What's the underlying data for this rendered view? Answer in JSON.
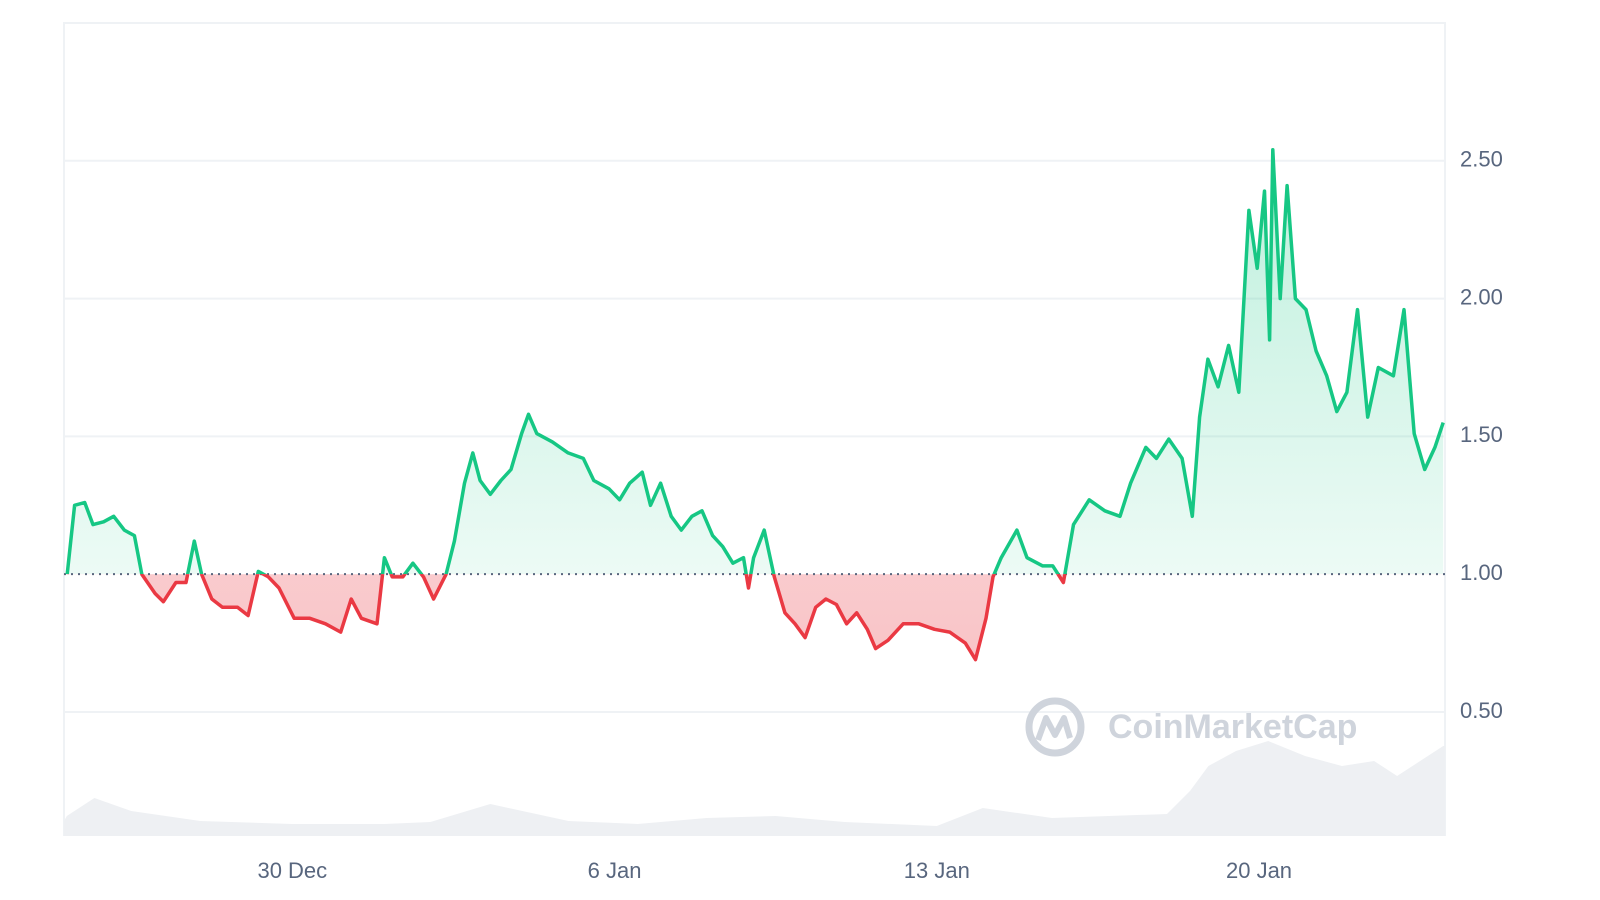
{
  "chart_data": {
    "type": "line",
    "watermark": "CoinMarketCap",
    "x": [
      -4.89,
      -4.73,
      -4.51,
      -4.33,
      -4.1,
      -3.88,
      -3.65,
      -3.43,
      -3.27,
      -2.98,
      -2.8,
      -2.53,
      -2.31,
      -2.13,
      -1.97,
      -1.75,
      -1.52,
      -1.19,
      -0.96,
      -0.74,
      -0.52,
      -0.29,
      0.04,
      0.38,
      0.72,
      1.05,
      1.28,
      1.5,
      1.84,
      2.0,
      2.17,
      2.4,
      2.62,
      2.85,
      3.07,
      3.34,
      3.52,
      3.74,
      3.92,
      4.08,
      4.3,
      4.53,
      4.75,
      4.98,
      5.13,
      5.31,
      5.65,
      5.99,
      6.32,
      6.55,
      6.88,
      7.11,
      7.33,
      7.6,
      7.78,
      8.0,
      8.23,
      8.45,
      8.68,
      8.9,
      9.13,
      9.35,
      9.57,
      9.8,
      9.91,
      10.02,
      10.25,
      10.47,
      10.7,
      10.92,
      11.14,
      11.37,
      11.59,
      11.82,
      12.04,
      12.26,
      12.49,
      12.67,
      12.94,
      13.27,
      13.61,
      13.95,
      14.28,
      14.62,
      14.84,
      15.07,
      15.22,
      15.4,
      15.74,
      15.96,
      16.3,
      16.52,
      16.75,
      16.97,
      17.31,
      17.65,
      17.98,
      18.21,
      18.54,
      18.77,
      19.04,
      19.33,
      19.55,
      19.71,
      19.89,
      20.11,
      20.34,
      20.56,
      20.78,
      20.96,
      21.12,
      21.23,
      21.3,
      21.46,
      21.61,
      21.79,
      22.02,
      22.24,
      22.47,
      22.69,
      22.91,
      23.14,
      23.36,
      23.59,
      23.92,
      24.15,
      24.37,
      24.6,
      24.82,
      25.0
    ],
    "series": [
      {
        "color": "#16c784",
        "below_color": "#ea3943",
        "values": [
          1.0,
          1.25,
          1.26,
          1.18,
          1.19,
          1.21,
          1.16,
          1.14,
          1.0,
          0.93,
          0.9,
          0.97,
          0.97,
          1.12,
          1.0,
          0.91,
          0.88,
          0.88,
          0.85,
          1.01,
          0.99,
          0.95,
          0.84,
          0.84,
          0.82,
          0.79,
          0.91,
          0.84,
          0.82,
          1.06,
          0.99,
          0.99,
          1.04,
          0.99,
          0.91,
          1.0,
          1.12,
          1.33,
          1.44,
          1.34,
          1.29,
          1.34,
          1.38,
          1.51,
          1.58,
          1.51,
          1.48,
          1.44,
          1.42,
          1.34,
          1.31,
          1.27,
          1.33,
          1.37,
          1.25,
          1.33,
          1.21,
          1.16,
          1.21,
          1.23,
          1.14,
          1.1,
          1.04,
          1.06,
          0.95,
          1.06,
          1.16,
          0.99,
          0.86,
          0.82,
          0.77,
          0.88,
          0.91,
          0.89,
          0.82,
          0.86,
          0.8,
          0.73,
          0.76,
          0.82,
          0.82,
          0.8,
          0.79,
          0.75,
          0.69,
          0.84,
          0.99,
          1.06,
          1.16,
          1.06,
          1.03,
          1.03,
          0.97,
          1.18,
          1.27,
          1.23,
          1.21,
          1.33,
          1.46,
          1.42,
          1.49,
          1.42,
          1.21,
          1.57,
          1.78,
          1.68,
          1.83,
          1.66,
          2.32,
          2.11,
          2.39,
          1.85,
          2.54,
          2.0,
          2.41,
          2.0,
          1.96,
          1.81,
          1.72,
          1.59,
          1.66,
          1.96,
          1.57,
          1.75,
          1.72,
          1.96,
          1.51,
          1.38,
          1.46,
          1.55
        ]
      }
    ],
    "baseline": 1,
    "volume": {
      "color": "#eef0f3",
      "x": [
        -4.96,
        -4.9,
        -4.3,
        -3.5,
        -2.0,
        0,
        2,
        3,
        4.3,
        6,
        7.5,
        9,
        10.5,
        12,
        14,
        15,
        16.5,
        19,
        19.5,
        19.9,
        20.5,
        21.2,
        22,
        22.8,
        23.5,
        24,
        25,
        25.04
      ],
      "values": [
        15,
        20,
        38,
        25,
        15,
        12,
        12,
        14,
        32,
        15,
        12,
        18,
        20,
        14,
        10,
        28,
        18,
        22,
        45,
        70,
        85,
        95,
        80,
        70,
        75,
        60,
        90,
        90
      ]
    },
    "y2lim": [
      0,
      100
    ],
    "xlim": [
      -4.96,
      25.04
    ],
    "xticks": [
      {
        "value": 0,
        "label": "30 Dec"
      },
      {
        "value": 7,
        "label": "6 Jan"
      },
      {
        "value": 14,
        "label": "13 Jan"
      },
      {
        "value": 21,
        "label": "20 Jan"
      }
    ],
    "ylim": [
      0.05,
      3.0
    ],
    "yticks": [
      {
        "value": 0.5,
        "label": "0.50"
      },
      {
        "value": 1,
        "label": "1.00"
      },
      {
        "value": 1.5,
        "label": "1.50"
      },
      {
        "value": 2,
        "label": "2.00"
      },
      {
        "value": 2.5,
        "label": "2.50"
      }
    ],
    "grid": true
  }
}
